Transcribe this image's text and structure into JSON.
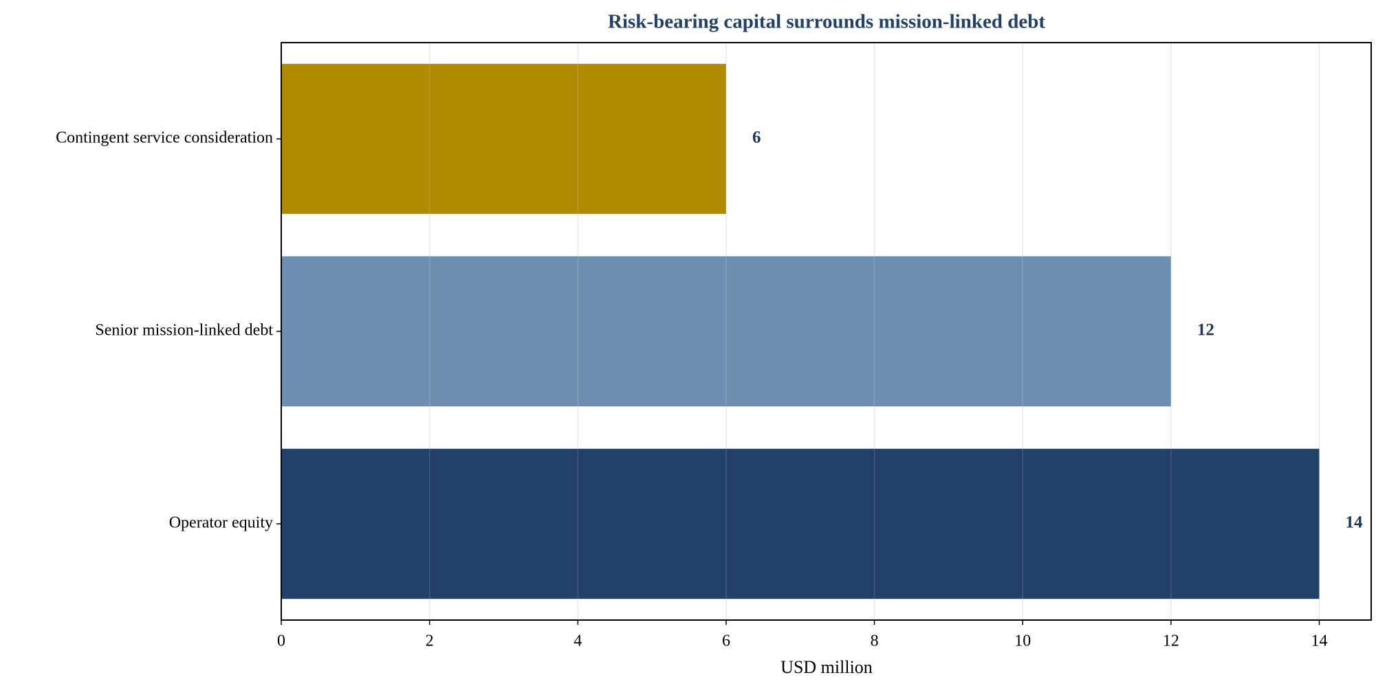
{
  "chart_data": {
    "type": "barh",
    "title": "Risk-bearing capital surrounds mission-linked debt",
    "x_label": "USD million",
    "categories": [
      "Contingent service consideration",
      "Senior mission-linked debt",
      "Operator equity"
    ],
    "values": [
      6,
      12,
      14
    ],
    "colors": [
      "#b08a00",
      "#6c8fb0",
      "#21406a"
    ],
    "xlim": [
      0,
      14.7
    ],
    "xticks": [
      0,
      2,
      4,
      6,
      8,
      10,
      12,
      14
    ],
    "grid": true
  }
}
